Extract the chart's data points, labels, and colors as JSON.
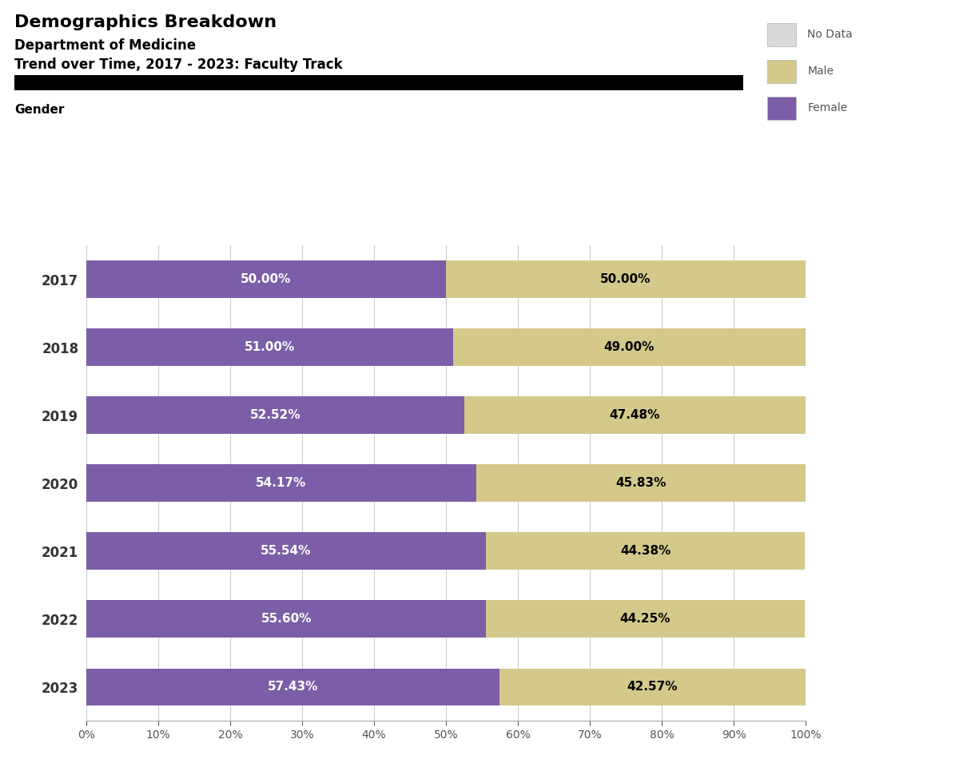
{
  "title1": "Demographics Breakdown",
  "title2": "Department of Medicine",
  "title3": "Trend over Time, 2017 - 2023: Faculty Track",
  "section_label": "Gender",
  "years": [
    "2017",
    "2018",
    "2019",
    "2020",
    "2021",
    "2022",
    "2023"
  ],
  "female_pct": [
    50.0,
    51.0,
    52.52,
    54.17,
    55.54,
    55.6,
    57.43
  ],
  "male_pct": [
    50.0,
    49.0,
    47.48,
    45.83,
    44.38,
    44.25,
    42.57
  ],
  "female_color": "#7B5EA7",
  "male_color": "#D4C98A",
  "no_data_color": "#D9D9D9",
  "bar_height": 0.55,
  "background_color": "#FFFFFF",
  "legend_labels": [
    "No Data",
    "Male",
    "Female"
  ],
  "legend_colors": [
    "#D9D9D9",
    "#D4C98A",
    "#7B5EA7"
  ],
  "xlabel_ticks": [
    0,
    10,
    20,
    30,
    40,
    50,
    60,
    70,
    80,
    90,
    100
  ],
  "grid_color": "#CCCCCC",
  "label_fontsize": 11,
  "bar_label_fontsize": 11,
  "title1_fontsize": 16,
  "title2_fontsize": 12,
  "title3_fontsize": 12,
  "year_label_fontsize": 12,
  "black_bar_color": "#000000",
  "text_color_dark": "#000000",
  "text_color_light": "#FFFFFF",
  "male_label_color": "#000000",
  "legend_text_color": "#555555"
}
